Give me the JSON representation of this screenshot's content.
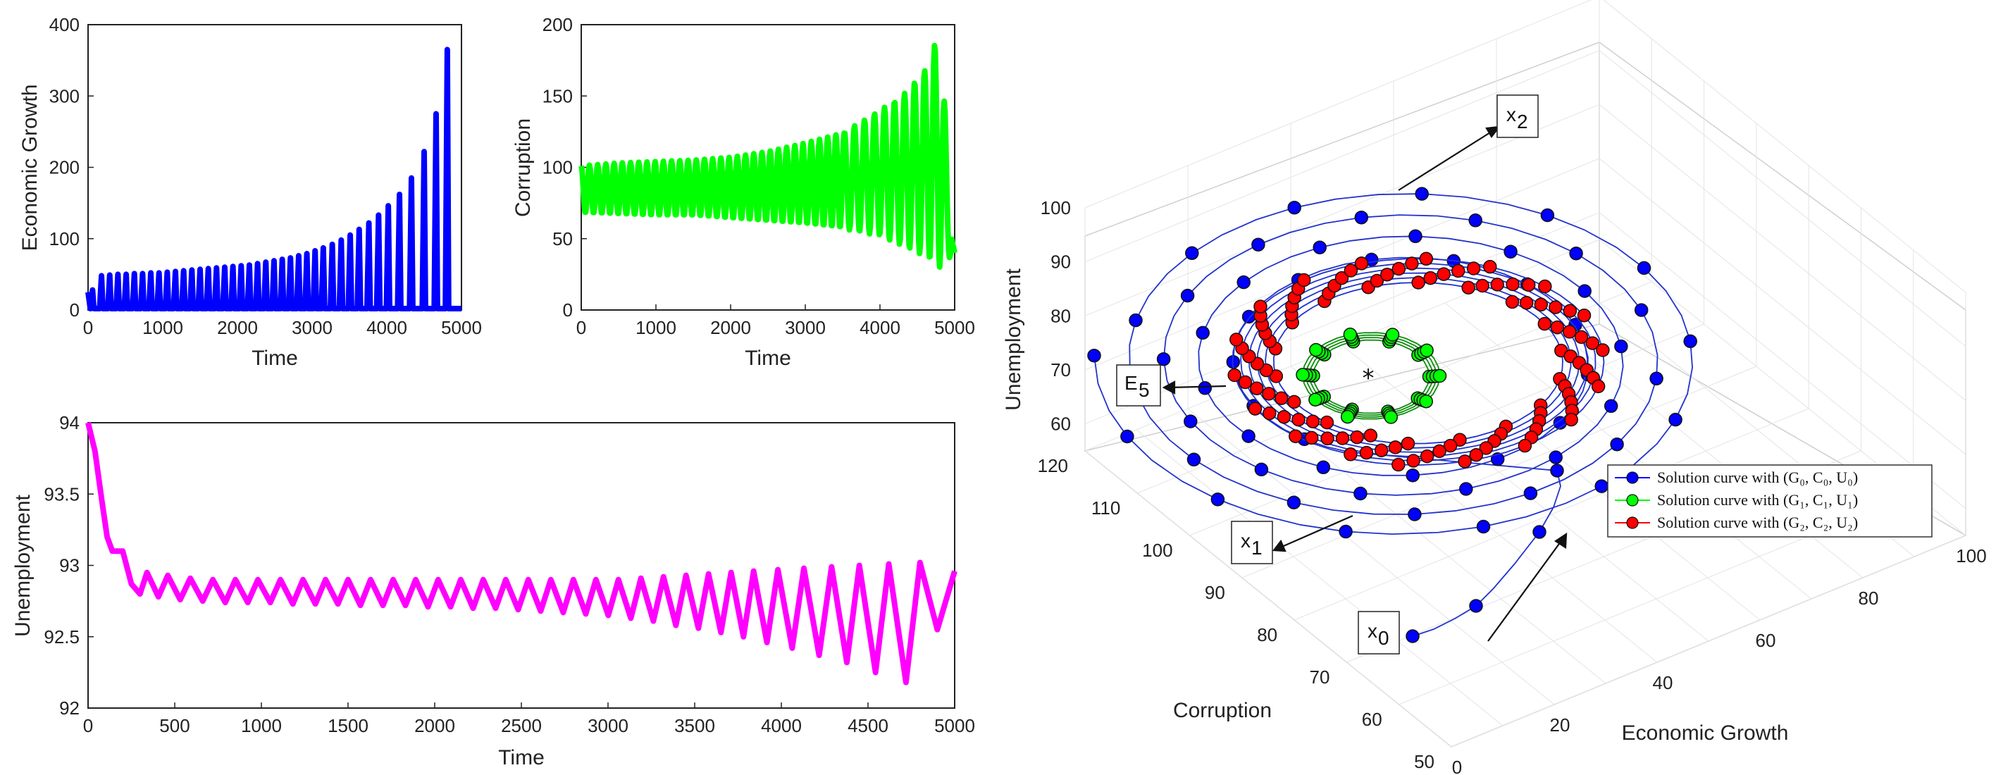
{
  "chart_data": [
    {
      "id": "growth",
      "type": "line",
      "title": "",
      "xlabel": "Time",
      "ylabel": "Economic Growth",
      "xlim": [
        0,
        5000
      ],
      "ylim": [
        0,
        400
      ],
      "xticks": [
        "0",
        "1000",
        "2000",
        "3000",
        "4000",
        "5000"
      ],
      "yticks": [
        "0",
        "100",
        "200",
        "300",
        "400"
      ],
      "color": "#0000ff",
      "series": [
        {
          "name": "Economic Growth",
          "peaks_t": [
            60,
            180,
            290,
            400,
            510,
            620,
            730,
            840,
            950,
            1060,
            1170,
            1280,
            1390,
            1500,
            1610,
            1720,
            1830,
            1940,
            2050,
            2160,
            2270,
            2380,
            2490,
            2600,
            2710,
            2820,
            2930,
            3040,
            3150,
            3270,
            3390,
            3510,
            3630,
            3760,
            3890,
            4020,
            4170,
            4330,
            4500,
            4660,
            4810
          ],
          "peaks_v": [
            28,
            48,
            49,
            50,
            50,
            51,
            51,
            52,
            52,
            53,
            54,
            55,
            56,
            57,
            58,
            59,
            60,
            61,
            62,
            63,
            65,
            67,
            69,
            71,
            73,
            76,
            79,
            83,
            87,
            92,
            98,
            105,
            113,
            122,
            133,
            146,
            162,
            185,
            222,
            275,
            365
          ]
        }
      ]
    },
    {
      "id": "corruption",
      "type": "line",
      "title": "",
      "xlabel": "Time",
      "ylabel": "Corruption",
      "xlim": [
        0,
        5000
      ],
      "ylim": [
        0,
        200
      ],
      "xticks": [
        "0",
        "1000",
        "2000",
        "3000",
        "4000",
        "5000"
      ],
      "yticks": [
        "0",
        "50",
        "100",
        "150",
        "200"
      ],
      "color": "#00ff00",
      "series": [
        {
          "name": "Corruption",
          "envelope_t": [
            0,
            500,
            1000,
            1500,
            2000,
            2500,
            3000,
            3500,
            4000,
            4300,
            4600,
            4800,
            5000
          ],
          "upper": [
            101,
            103,
            104,
            105,
            107,
            111,
            117,
            124,
            140,
            150,
            168,
            195,
            40
          ],
          "lower": [
            68,
            67,
            66,
            66,
            64,
            62,
            60,
            57,
            52,
            45,
            38,
            30,
            40
          ]
        }
      ]
    },
    {
      "id": "unemployment",
      "type": "line",
      "title": "",
      "xlabel": "Time",
      "ylabel": "Unemployment",
      "xlim": [
        0,
        5000
      ],
      "ylim": [
        92,
        94
      ],
      "xticks": [
        "0",
        "500",
        "1000",
        "1500",
        "2000",
        "2500",
        "3000",
        "3500",
        "4000",
        "4500",
        "5000"
      ],
      "yticks": [
        "92",
        "92.5",
        "93",
        "93.5",
        "94"
      ],
      "color": "#ff00ff",
      "series": [
        {
          "name": "Unemployment",
          "initial": [
            [
              0,
              94.0
            ],
            [
              40,
              93.8
            ],
            [
              80,
              93.45
            ],
            [
              110,
              93.2
            ],
            [
              140,
              93.1
            ],
            [
              200,
              93.1
            ],
            [
              250,
              92.87
            ]
          ],
          "cycle_t": [
            340,
            460,
            590,
            720,
            850,
            980,
            1110,
            1240,
            1370,
            1500,
            1630,
            1760,
            1890,
            2020,
            2150,
            2280,
            2410,
            2540,
            2670,
            2800,
            2930,
            3060,
            3190,
            3320,
            3450,
            3580,
            3710,
            3840,
            3980,
            4130,
            4290,
            4450,
            4620,
            4800
          ],
          "cycle_hi": [
            92.95,
            92.93,
            92.91,
            92.9,
            92.9,
            92.9,
            92.9,
            92.9,
            92.9,
            92.9,
            92.9,
            92.9,
            92.9,
            92.9,
            92.9,
            92.9,
            92.9,
            92.9,
            92.9,
            92.9,
            92.9,
            92.9,
            92.91,
            92.92,
            92.93,
            92.94,
            92.95,
            92.96,
            92.97,
            92.98,
            92.99,
            93.0,
            93.01,
            93.02
          ],
          "cycle_lo": [
            92.8,
            92.78,
            92.76,
            92.75,
            92.74,
            92.74,
            92.74,
            92.73,
            92.73,
            92.73,
            92.72,
            92.72,
            92.72,
            92.71,
            92.71,
            92.7,
            92.7,
            92.69,
            92.68,
            92.67,
            92.66,
            92.65,
            92.63,
            92.61,
            92.58,
            92.56,
            92.53,
            92.5,
            92.46,
            92.42,
            92.37,
            92.32,
            92.25,
            92.18
          ]
        }
      ]
    },
    {
      "id": "phase3d",
      "type": "scatter",
      "title": "",
      "xlabel": "Economic Growth",
      "ylabel": "Corruption",
      "zlabel": "Unemployment",
      "xticks": [
        "0",
        "20",
        "40",
        "60",
        "80",
        "100"
      ],
      "yticks": [
        "50",
        "60",
        "70",
        "80",
        "90",
        "100",
        "110",
        "120"
      ],
      "zticks": [
        "60",
        "70",
        "80",
        "90",
        "100"
      ],
      "legend": [
        {
          "label": "Solution curve with (G₀, C₀, U₀)",
          "color": "#0000ff"
        },
        {
          "label": "Solution curve with (G₁, C₁, U₁)",
          "color": "#00ff00"
        },
        {
          "label": "Solution curve with (G₂, C₂, U₂)",
          "color": "#ff0000"
        }
      ],
      "annotations": [
        {
          "base": "x",
          "sub": "0"
        },
        {
          "base": "x",
          "sub": "1"
        },
        {
          "base": "x",
          "sub": "2"
        },
        {
          "base": "E",
          "sub": "5"
        }
      ],
      "equilibrium_marker": "*"
    }
  ]
}
